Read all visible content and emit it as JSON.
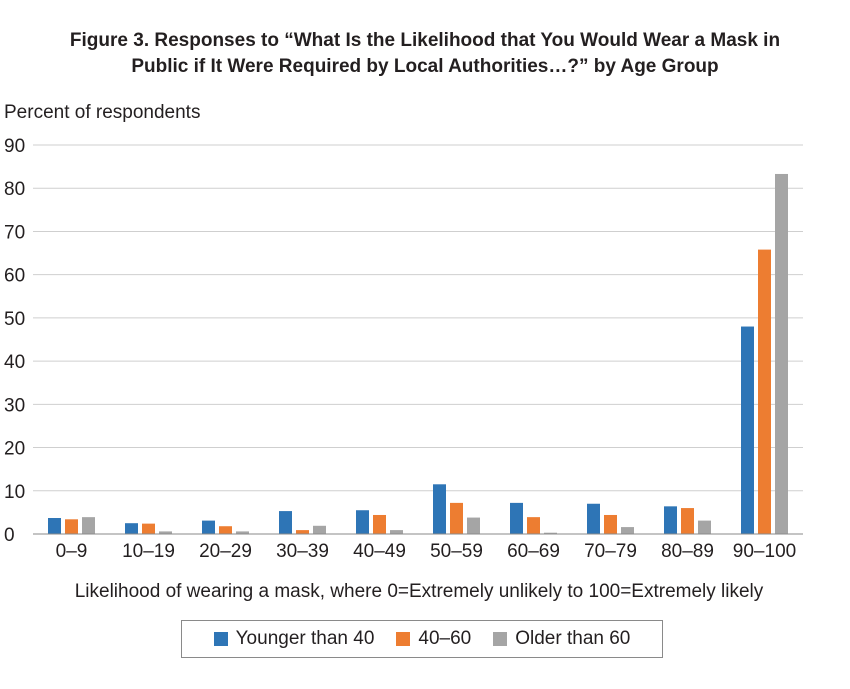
{
  "figure": {
    "title_line1": "Figure 3. Responses to “What Is the Likelihood that You Would Wear a Mask in",
    "title_line2": "Public if It Were Required by Local Authorities…?” by Age Group"
  },
  "chart_data": {
    "type": "bar",
    "ylabel": "Percent of respondents",
    "xlabel": "Likelihood of wearing a mask, where 0=Extremely unlikely to 100=Extremely likely",
    "categories": [
      "0–9",
      "10–19",
      "20–29",
      "30–39",
      "40–49",
      "50–59",
      "60–69",
      "70–79",
      "80–89",
      "90–100"
    ],
    "ylim": [
      0,
      90
    ],
    "yticks": [
      0,
      10,
      20,
      30,
      40,
      50,
      60,
      70,
      80,
      90
    ],
    "grid": true,
    "legend_position": "bottom",
    "series": [
      {
        "name": "Younger than 40",
        "color": "#2e75b6",
        "values": [
          3.7,
          2.5,
          3.1,
          5.3,
          5.5,
          11.5,
          7.2,
          7.0,
          6.4,
          48.0
        ]
      },
      {
        "name": "40–60",
        "color": "#ed7d31",
        "values": [
          3.4,
          2.4,
          1.8,
          0.9,
          4.4,
          7.2,
          3.9,
          4.4,
          6.0,
          65.8
        ]
      },
      {
        "name": "Older than 60",
        "color": "#a5a5a5",
        "values": [
          3.9,
          0.6,
          0.6,
          1.9,
          0.9,
          3.8,
          0.3,
          1.6,
          3.1,
          83.3
        ]
      }
    ]
  }
}
